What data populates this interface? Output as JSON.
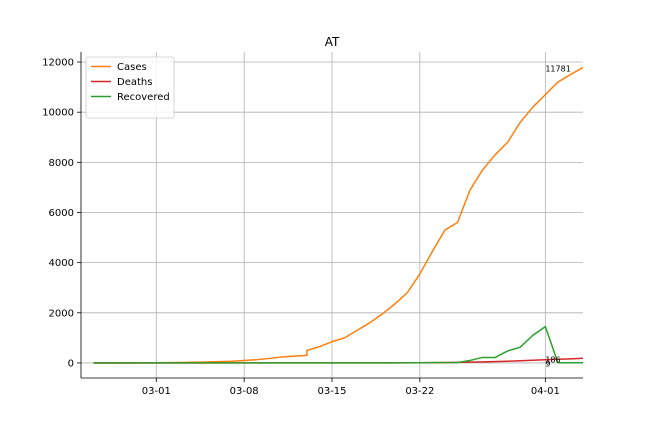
{
  "chart_data": {
    "type": "line",
    "title": "AT",
    "xlabel": "",
    "ylabel": "",
    "x_range": [
      "2020-02-24",
      "2020-04-04"
    ],
    "ylim": [
      -600,
      12400
    ],
    "grid": true,
    "legend_position": "top-left",
    "x_ticks": [
      {
        "date": "2020-03-01",
        "label": "03-01"
      },
      {
        "date": "2020-03-08",
        "label": "03-08"
      },
      {
        "date": "2020-03-15",
        "label": "03-15"
      },
      {
        "date": "2020-03-22",
        "label": "03-22"
      },
      {
        "date": "2020-04-01",
        "label": "04-01"
      }
    ],
    "y_ticks": [
      0,
      2000,
      4000,
      6000,
      8000,
      10000,
      12000
    ],
    "series": [
      {
        "name": "Cases",
        "color": "#ff7f0e",
        "points": [
          [
            "2020-02-25",
            2
          ],
          [
            "2020-02-28",
            5
          ],
          [
            "2020-03-01",
            10
          ],
          [
            "2020-03-03",
            20
          ],
          [
            "2020-03-05",
            40
          ],
          [
            "2020-03-07",
            70
          ],
          [
            "2020-03-08",
            100
          ],
          [
            "2020-03-09",
            130
          ],
          [
            "2020-03-10",
            180
          ],
          [
            "2020-03-11",
            240
          ],
          [
            "2020-03-12",
            270
          ],
          [
            "2020-03-13",
            300
          ],
          [
            "2020-03-13",
            500
          ],
          [
            "2020-03-14",
            650
          ],
          [
            "2020-03-15",
            850
          ],
          [
            "2020-03-16",
            1000
          ],
          [
            "2020-03-17",
            1300
          ],
          [
            "2020-03-18",
            1600
          ],
          [
            "2020-03-19",
            1950
          ],
          [
            "2020-03-20",
            2350
          ],
          [
            "2020-03-21",
            2800
          ],
          [
            "2020-03-22",
            3550
          ],
          [
            "2020-03-23",
            4450
          ],
          [
            "2020-03-24",
            5300
          ],
          [
            "2020-03-25",
            5600
          ],
          [
            "2020-03-26",
            6900
          ],
          [
            "2020-03-27",
            7700
          ],
          [
            "2020-03-28",
            8300
          ],
          [
            "2020-03-29",
            8800
          ],
          [
            "2020-03-30",
            9600
          ],
          [
            "2020-03-31",
            10200
          ],
          [
            "2020-04-01",
            10700
          ],
          [
            "2020-04-02",
            11200
          ],
          [
            "2020-04-03",
            11500
          ],
          [
            "2020-04-04",
            11781
          ]
        ]
      },
      {
        "name": "Deaths",
        "color": "#d62728",
        "points": [
          [
            "2020-02-25",
            0
          ],
          [
            "2020-03-11",
            1
          ],
          [
            "2020-03-18",
            3
          ],
          [
            "2020-03-22",
            10
          ],
          [
            "2020-03-25",
            25
          ],
          [
            "2020-03-27",
            45
          ],
          [
            "2020-03-29",
            70
          ],
          [
            "2020-03-31",
            110
          ],
          [
            "2020-04-01",
            130
          ],
          [
            "2020-04-02",
            150
          ],
          [
            "2020-04-03",
            165
          ],
          [
            "2020-04-04",
            186
          ]
        ]
      },
      {
        "name": "Recovered",
        "color": "#2ca02c",
        "points": [
          [
            "2020-02-25",
            0
          ],
          [
            "2020-03-20",
            5
          ],
          [
            "2020-03-25",
            20
          ],
          [
            "2020-03-26",
            100
          ],
          [
            "2020-03-27",
            220
          ],
          [
            "2020-03-28",
            220
          ],
          [
            "2020-03-29",
            480
          ],
          [
            "2020-03-30",
            630
          ],
          [
            "2020-03-31",
            1100
          ],
          [
            "2020-04-01",
            1450
          ],
          [
            "2020-04-02",
            9
          ],
          [
            "2020-04-03",
            9
          ],
          [
            "2020-04-04",
            9
          ]
        ]
      }
    ],
    "annotations": [
      {
        "text": "11781",
        "date": "2020-04-01",
        "value": 11781
      },
      {
        "text": "186",
        "date": "2020-04-01",
        "value": 186
      },
      {
        "text": "9",
        "date": "2020-04-01",
        "value": 9
      }
    ]
  }
}
